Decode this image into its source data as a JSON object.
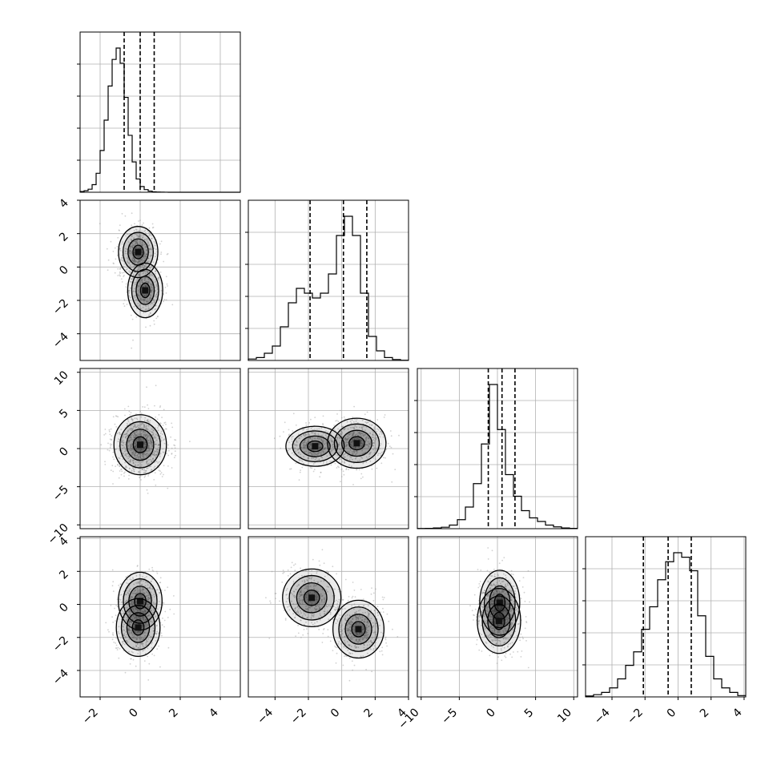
{
  "chart_data": {
    "type": "corner",
    "grid": true,
    "variables": [
      {
        "range": [
          -3,
          5
        ],
        "ticks": [
          -2,
          0,
          2,
          4
        ],
        "tick_labels": [
          "−2",
          "0",
          "2",
          "4"
        ],
        "quantiles": [
          -0.8,
          0.0,
          0.7
        ]
      },
      {
        "range": [
          -5.6,
          4
        ],
        "ticks": [
          -4,
          -2,
          0,
          2,
          4
        ],
        "tick_labels": [
          "−4",
          "−2",
          "0",
          "2",
          "4"
        ],
        "quantiles": [
          -1.9,
          0.1,
          1.5
        ]
      },
      {
        "range": [
          -10.5,
          10.5
        ],
        "ticks": [
          -10,
          -5,
          0,
          5,
          10
        ],
        "tick_labels": [
          "−10",
          "−5",
          "0",
          "5",
          "10"
        ],
        "quantiles": [
          -1.2,
          0.6,
          2.3
        ]
      },
      {
        "range": [
          -5.6,
          4.1
        ],
        "ticks": [
          -4,
          -2,
          0,
          2,
          4
        ],
        "tick_labels": [
          "−4",
          "−2",
          "0",
          "2",
          "4"
        ],
        "quantiles": [
          -2.1,
          -0.6,
          0.8
        ]
      }
    ],
    "histograms": [
      {
        "edges_range": [
          -3,
          5
        ],
        "bins": 40,
        "counts": [
          0.2,
          0.4,
          0.8,
          2,
          5,
          11,
          19,
          28,
          35,
          38,
          34,
          25,
          15,
          8,
          3.5,
          1.5,
          0.7,
          0.3,
          0.1,
          0.05,
          0.02,
          0.01,
          0,
          0,
          0,
          0,
          0,
          0,
          0,
          0,
          0,
          0,
          0,
          0,
          0,
          0,
          0,
          0,
          0,
          0
        ]
      },
      {
        "edges_range": [
          -5.6,
          4
        ],
        "bins": 20,
        "counts": [
          0.3,
          0.6,
          1.5,
          3,
          7,
          12,
          15,
          14,
          13,
          14,
          18,
          26,
          30,
          26,
          14,
          5,
          2,
          0.6,
          0.2,
          0.05
        ]
      },
      {
        "edges_range": [
          -10.5,
          10.5
        ],
        "bins": 20,
        "counts": [
          0.1,
          0.2,
          0.4,
          0.8,
          2,
          5,
          12,
          25,
          47,
          80,
          55,
          30,
          18,
          10,
          6,
          4,
          2,
          1,
          0.4,
          0.2
        ]
      },
      {
        "edges_range": [
          -5.6,
          4.1
        ],
        "bins": 20,
        "counts": [
          0.2,
          0.5,
          1,
          2,
          4,
          7,
          10,
          15,
          20,
          26,
          30,
          32,
          31,
          28,
          18,
          9,
          4,
          2,
          1,
          0.3
        ]
      }
    ],
    "pairs": [
      {
        "x": 0,
        "y": 1,
        "components": [
          {
            "mx": -0.1,
            "my": 0.9,
            "sx": 0.45,
            "sy": 0.7,
            "w": 0.55
          },
          {
            "mx": 0.25,
            "my": -1.4,
            "sx": 0.4,
            "sy": 0.75,
            "w": 0.45
          }
        ]
      },
      {
        "x": 0,
        "y": 2,
        "components": [
          {
            "mx": 0.0,
            "my": 0.5,
            "sx": 0.6,
            "sy": 1.8,
            "w": 1.0
          }
        ]
      },
      {
        "x": 1,
        "y": 2,
        "components": [
          {
            "mx": -1.6,
            "my": 0.3,
            "sx": 0.8,
            "sy": 1.2,
            "w": 0.45
          },
          {
            "mx": 0.9,
            "my": 0.7,
            "sx": 0.8,
            "sy": 1.5,
            "w": 0.55
          }
        ]
      },
      {
        "x": 0,
        "y": 3,
        "components": [
          {
            "mx": 0.0,
            "my": 0.2,
            "sx": 0.5,
            "sy": 0.8,
            "w": 0.5
          },
          {
            "mx": -0.1,
            "my": -1.4,
            "sx": 0.5,
            "sy": 0.8,
            "w": 0.5
          }
        ]
      },
      {
        "x": 1,
        "y": 3,
        "components": [
          {
            "mx": -1.8,
            "my": 0.4,
            "sx": 0.8,
            "sy": 0.8,
            "w": 0.45
          },
          {
            "mx": 1.0,
            "my": -1.5,
            "sx": 0.7,
            "sy": 0.8,
            "w": 0.55
          }
        ]
      },
      {
        "x": 2,
        "y": 3,
        "components": [
          {
            "mx": 0.3,
            "my": 0.1,
            "sx": 1.2,
            "sy": 0.9,
            "w": 0.55
          },
          {
            "mx": 0.2,
            "my": -1.0,
            "sx": 1.3,
            "sy": 0.9,
            "w": 0.45
          }
        ]
      }
    ]
  }
}
